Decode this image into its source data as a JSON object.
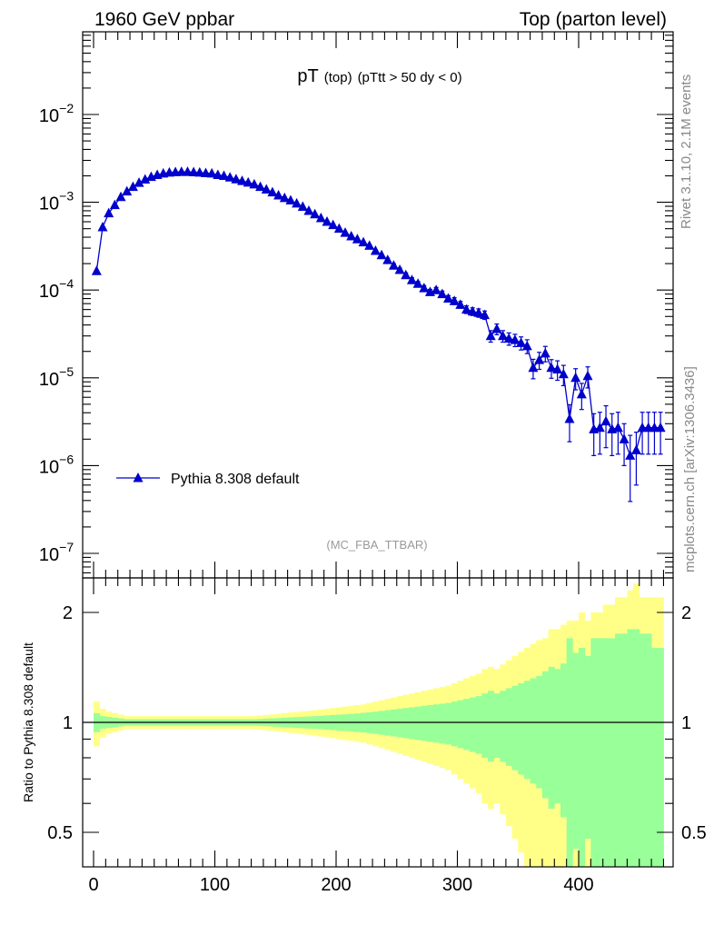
{
  "header": {
    "left": "1960 GeV ppbar",
    "right": "Top (parton level)"
  },
  "plot_title": {
    "main": "pT",
    "sub1": "(top)",
    "sub2": "(pTtt > 50 dy < 0)"
  },
  "side_labels": {
    "rivet": "Rivet 3.1.10,  2.1M events",
    "source": "mcplots.cern.ch [arXiv:1306.3436]"
  },
  "watermark": "(MC_FBA_TTBAR)",
  "colors": {
    "series": "#0000cc",
    "band_outer": "#ffff88",
    "band_inner": "#99ff99",
    "watermark": "#999999",
    "side_label": "#888888"
  },
  "chart_data": [
    {
      "type": "line",
      "yscale": "log",
      "xlim": [
        -10,
        476
      ],
      "ylim": [
        5e-08,
        0.1
      ],
      "y_ticks": [
        {
          "value": 1e-07,
          "mant": "10",
          "exp": "−7"
        },
        {
          "value": 1e-06,
          "mant": "10",
          "exp": "−6"
        },
        {
          "value": 1e-05,
          "mant": "10",
          "exp": "−5"
        },
        {
          "value": 0.0001,
          "mant": "10",
          "exp": "−4"
        },
        {
          "value": 0.001,
          "mant": "10",
          "exp": "−3"
        },
        {
          "value": 0.01,
          "mant": "10",
          "exp": "−2"
        }
      ],
      "legend": {
        "label": "Pythia 8.308 default",
        "position": "lower-left"
      },
      "series": [
        {
          "name": "Pythia 8.308 default",
          "x": [
            2.5,
            7.5,
            12.5,
            17.5,
            22.5,
            27.5,
            32.5,
            37.5,
            42.5,
            47.5,
            52.5,
            57.5,
            62.5,
            67.5,
            72.5,
            77.5,
            82.5,
            87.5,
            92.5,
            97.5,
            102.5,
            107.5,
            112.5,
            117.5,
            122.5,
            127.5,
            132.5,
            137.5,
            142.5,
            147.5,
            152.5,
            157.5,
            162.5,
            167.5,
            172.5,
            177.5,
            182.5,
            187.5,
            192.5,
            197.5,
            202.5,
            207.5,
            212.5,
            217.5,
            222.5,
            227.5,
            232.5,
            237.5,
            242.5,
            247.5,
            252.5,
            257.5,
            262.5,
            267.5,
            272.5,
            277.5,
            282.5,
            287.5,
            292.5,
            297.5,
            302.5,
            307.5,
            312.5,
            317.5,
            322.5,
            327.5,
            332.5,
            337.5,
            342.5,
            347.5,
            352.5,
            357.5,
            362.5,
            367.5,
            372.5,
            377.5,
            382.5,
            387.5,
            392.5,
            397.5,
            402.5,
            407.5,
            412.5,
            417.5,
            422.5,
            427.5,
            432.5,
            437.5,
            442.5,
            447.5,
            452.5,
            457.5,
            462.5,
            467.5
          ],
          "y": [
            0.000165,
            0.00052,
            0.00075,
            0.00093,
            0.00115,
            0.00133,
            0.0015,
            0.00167,
            0.00182,
            0.00195,
            0.00205,
            0.00213,
            0.00218,
            0.00221,
            0.00222,
            0.00222,
            0.0022,
            0.00218,
            0.00215,
            0.00213,
            0.00205,
            0.002,
            0.00192,
            0.00183,
            0.00175,
            0.00168,
            0.0016,
            0.0015,
            0.0014,
            0.0013,
            0.0012,
            0.00112,
            0.00105,
            0.00097,
            0.00089,
            0.0008,
            0.00073,
            0.00066,
            0.0006,
            0.00055,
            0.0005,
            0.00045,
            0.00041,
            0.00038,
            0.00035,
            0.00032,
            0.00028,
            0.00025,
            0.00022,
            0.00019,
            0.00017,
            0.000148,
            0.00013,
            0.000118,
            0.000105,
            9.5e-05,
            0.0001,
            9e-05,
            8e-05,
            7.5e-05,
            6.8e-05,
            6e-05,
            5.7e-05,
            5.5e-05,
            5.2e-05,
            3e-05,
            3.6e-05,
            3e-05,
            2.8e-05,
            2.7e-05,
            2.5e-05,
            2.3e-05,
            1.3e-05,
            1.6e-05,
            1.9e-05,
            1.3e-05,
            1.25e-05,
            1.1e-05,
            3.4e-06,
            1e-05,
            6.5e-06,
            1.05e-05,
            2.6e-06,
            2.7e-06,
            3.2e-06,
            2.6e-06,
            2.7e-06,
            2e-06,
            1.3e-06,
            1.5e-06,
            2.7e-06,
            2.7e-06,
            2.7e-06,
            2.7e-06
          ],
          "yerr_frac": [
            0.03,
            0.02,
            0.02,
            0.02,
            0.02,
            0.02,
            0.02,
            0.02,
            0.02,
            0.02,
            0.02,
            0.02,
            0.02,
            0.02,
            0.02,
            0.02,
            0.02,
            0.02,
            0.02,
            0.02,
            0.02,
            0.02,
            0.02,
            0.02,
            0.02,
            0.02,
            0.02,
            0.02,
            0.02,
            0.02,
            0.02,
            0.02,
            0.02,
            0.02,
            0.02,
            0.02,
            0.02,
            0.02,
            0.03,
            0.03,
            0.03,
            0.03,
            0.03,
            0.03,
            0.04,
            0.04,
            0.04,
            0.04,
            0.05,
            0.05,
            0.05,
            0.06,
            0.06,
            0.06,
            0.07,
            0.07,
            0.07,
            0.08,
            0.08,
            0.09,
            0.09,
            0.1,
            0.1,
            0.11,
            0.11,
            0.15,
            0.14,
            0.15,
            0.16,
            0.16,
            0.17,
            0.18,
            0.25,
            0.22,
            0.2,
            0.24,
            0.25,
            0.26,
            0.45,
            0.27,
            0.33,
            0.27,
            0.5,
            0.5,
            0.5,
            0.5,
            0.5,
            0.5,
            0.7,
            0.6,
            0.5,
            0.5,
            0.5,
            0.5
          ]
        }
      ]
    },
    {
      "type": "area",
      "ylabel": "Ratio to Pythia 8.308 default",
      "xlim": [
        -10,
        476
      ],
      "ylim": [
        0.4,
        2.3
      ],
      "y_ticks": [
        0.5,
        1,
        2
      ],
      "y_tick_labels": [
        "0.5",
        "1",
        "2"
      ],
      "x_ticks": [
        0,
        100,
        200,
        300,
        400
      ],
      "x_tick_labels": [
        "0",
        "100",
        "200",
        "300",
        "400"
      ],
      "reference": 1,
      "inner_band_halfwidth": [
        0.06,
        0.04,
        0.035,
        0.03,
        0.025,
        0.02,
        0.02,
        0.02,
        0.02,
        0.02,
        0.02,
        0.02,
        0.02,
        0.02,
        0.02,
        0.02,
        0.02,
        0.02,
        0.02,
        0.02,
        0.02,
        0.02,
        0.02,
        0.02,
        0.02,
        0.02,
        0.02,
        0.022,
        0.024,
        0.026,
        0.028,
        0.03,
        0.032,
        0.034,
        0.036,
        0.038,
        0.04,
        0.042,
        0.045,
        0.048,
        0.05,
        0.052,
        0.055,
        0.058,
        0.062,
        0.066,
        0.07,
        0.075,
        0.08,
        0.085,
        0.09,
        0.095,
        0.1,
        0.105,
        0.11,
        0.115,
        0.12,
        0.125,
        0.13,
        0.14,
        0.15,
        0.16,
        0.17,
        0.18,
        0.2,
        0.22,
        0.2,
        0.22,
        0.24,
        0.26,
        0.28,
        0.3,
        0.32,
        0.34,
        0.38,
        0.42,
        0.4,
        0.45,
        0.7,
        0.55,
        0.6,
        0.52,
        0.7,
        0.7,
        0.7,
        0.7,
        0.75,
        0.75,
        0.8,
        0.8,
        0.75,
        0.75,
        0.6,
        0.6
      ],
      "outer_band_halfwidth": [
        0.14,
        0.09,
        0.07,
        0.06,
        0.05,
        0.04,
        0.04,
        0.04,
        0.04,
        0.04,
        0.04,
        0.04,
        0.04,
        0.04,
        0.04,
        0.04,
        0.04,
        0.04,
        0.04,
        0.04,
        0.04,
        0.04,
        0.04,
        0.04,
        0.04,
        0.04,
        0.042,
        0.045,
        0.048,
        0.052,
        0.056,
        0.06,
        0.064,
        0.068,
        0.072,
        0.076,
        0.08,
        0.085,
        0.09,
        0.095,
        0.1,
        0.105,
        0.11,
        0.115,
        0.12,
        0.13,
        0.14,
        0.15,
        0.16,
        0.17,
        0.18,
        0.19,
        0.2,
        0.21,
        0.22,
        0.23,
        0.24,
        0.25,
        0.26,
        0.28,
        0.3,
        0.32,
        0.34,
        0.36,
        0.4,
        0.42,
        0.4,
        0.44,
        0.48,
        0.52,
        0.56,
        0.6,
        0.64,
        0.68,
        0.7,
        0.8,
        0.8,
        0.85,
        0.9,
        0.9,
        1.0,
        0.9,
        1.0,
        1.0,
        1.1,
        1.1,
        1.2,
        1.2,
        1.3,
        1.4,
        1.2,
        1.2,
        1.2,
        1.2
      ]
    }
  ]
}
